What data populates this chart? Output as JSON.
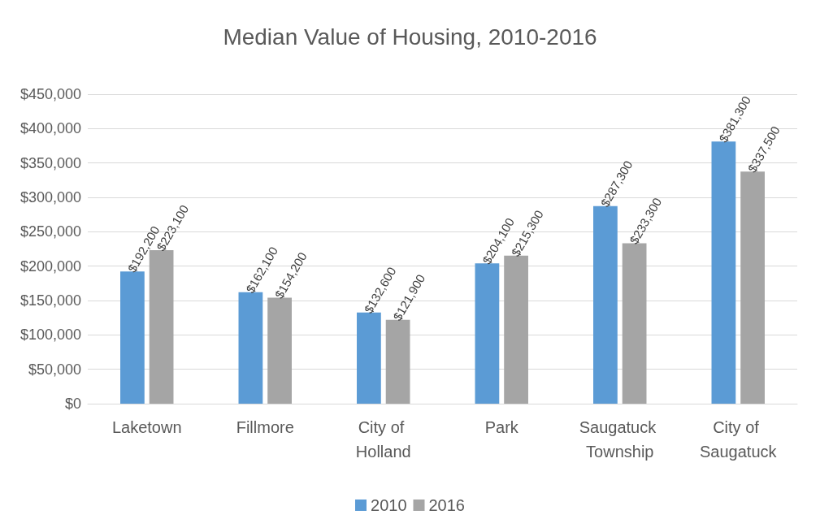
{
  "chart_data": {
    "type": "bar",
    "title": "Median Value of Housing, 2010-2016",
    "categories": [
      "Laketown",
      "Fillmore",
      "City of Holland",
      "Park",
      "Saugatuck Township",
      "City of Saugatuck"
    ],
    "series": [
      {
        "name": "2010",
        "color": "#5b9bd5",
        "values": [
          192200,
          162100,
          132600,
          204100,
          287300,
          381300
        ],
        "value_labels": [
          "$192,200",
          "$162,100",
          "$132,600",
          "$204,100",
          "$287,300",
          "$381,300"
        ]
      },
      {
        "name": "2016",
        "color": "#a5a5a5",
        "values": [
          223100,
          154200,
          121900,
          215300,
          233300,
          337500
        ],
        "value_labels": [
          "$223,100",
          "$154,200",
          "$121,900",
          "$215,300",
          "$233,300",
          "$337,500"
        ]
      }
    ],
    "ylim": [
      0,
      450000
    ],
    "yticks": [
      {
        "value": 0,
        "label": "$0"
      },
      {
        "value": 50000,
        "label": "$50,000"
      },
      {
        "value": 100000,
        "label": "$100,000"
      },
      {
        "value": 150000,
        "label": "$150,000"
      },
      {
        "value": 200000,
        "label": "$200,000"
      },
      {
        "value": 250000,
        "label": "$250,000"
      },
      {
        "value": 300000,
        "label": "$300,000"
      },
      {
        "value": 350000,
        "label": "$350,000"
      },
      {
        "value": 400000,
        "label": "$400,000"
      },
      {
        "value": 450000,
        "label": "$450,000"
      }
    ],
    "grid": "y",
    "legend": "bottom"
  }
}
